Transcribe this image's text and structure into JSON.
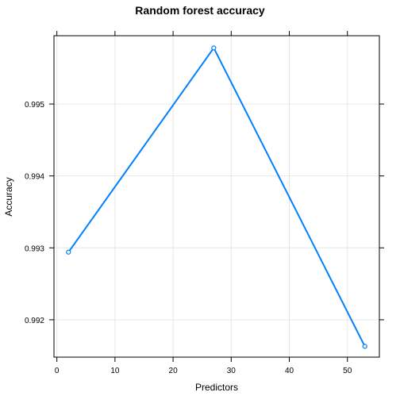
{
  "chart_data": {
    "type": "line",
    "title": "Random forest accuracy",
    "xlabel": "Predictors",
    "ylabel": "Accuracy",
    "xlim": [
      -0.5,
      55.5
    ],
    "ylim": [
      0.99148,
      0.99595
    ],
    "x_ticks": [
      0,
      10,
      20,
      30,
      40,
      50
    ],
    "y_ticks": [
      0.992,
      0.993,
      0.994,
      0.995
    ],
    "y_tick_labels": [
      "0.992",
      "0.993",
      "0.994",
      "0.995"
    ],
    "grid": true,
    "series": [
      {
        "color": "#0080ff",
        "marker": "open-circle",
        "x": [
          2,
          27,
          53
        ],
        "y": [
          0.99294,
          0.99578,
          0.99163
        ]
      }
    ]
  }
}
